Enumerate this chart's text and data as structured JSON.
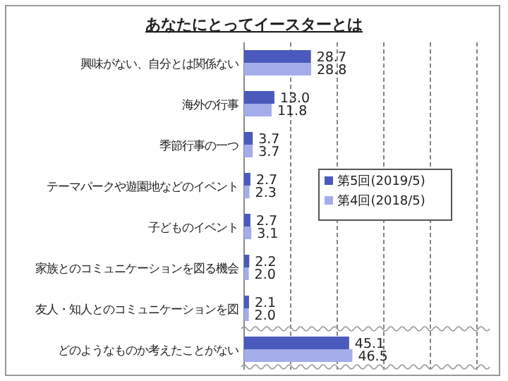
{
  "chart_data": {
    "type": "bar",
    "orientation": "horizontal",
    "title": "あなたにとってイースターとは",
    "categories": [
      "興味がない、自分とは関係ない",
      "海外の行事",
      "季節行事の一つ",
      "テーマパークや遊園地などのイベント",
      "子どものイベント",
      "家族とのコミュニケーションを図る機会",
      "友人・知人とのコミュニケーションを図",
      "どのようなものか考えたことがない"
    ],
    "series": [
      {
        "name": "第5回(2019/5)",
        "color": "#4a5abc",
        "values": [
          28.7,
          13.0,
          3.7,
          2.7,
          2.7,
          2.2,
          2.1,
          45.1
        ],
        "value_labels": [
          "28.7",
          "13.0",
          "3.7",
          "2.7",
          "2.7",
          "2.2",
          "2.1",
          "45.1"
        ]
      },
      {
        "name": "第4回(2018/5)",
        "color": "#a4acea",
        "values": [
          28.8,
          11.8,
          3.7,
          2.3,
          3.1,
          2.0,
          2.0,
          46.5
        ],
        "value_labels": [
          "28.8",
          "11.8",
          "3.7",
          "2.3",
          "3.1",
          "2.0",
          "2.0",
          "46.5"
        ]
      }
    ],
    "xlim": [
      0,
      100
    ],
    "xticks": [
      {
        "value": 0,
        "label": null
      },
      {
        "value": 20,
        "label": null
      },
      {
        "value": 40,
        "label": null
      },
      {
        "value": 60,
        "label": null
      },
      {
        "value": 80,
        "label": null
      },
      {
        "value": 100,
        "label": null
      }
    ],
    "tick_labels": false,
    "grid": "x",
    "legend": "right"
  }
}
